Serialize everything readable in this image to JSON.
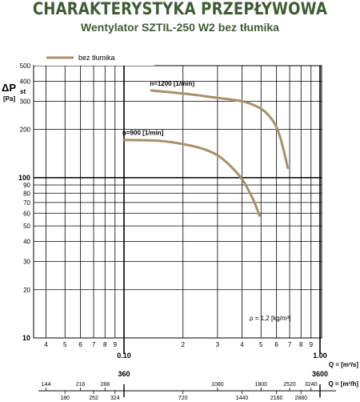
{
  "title": "CHARAKTERYSTYKA PRZEPŁYWOWA",
  "subtitle": "Wentylator SZTIL-250 W2 bez tłumika",
  "chart_data": {
    "type": "line",
    "title": "CHARAKTERYSTYKA PRZEPŁYWOWA",
    "subtitle": "Wentylator SZTIL-250 W2 bez tłumika",
    "legend": {
      "label": "bez tłumika",
      "placement": "top-left",
      "color": "#a8906a"
    },
    "ylabel_main": "ΔP",
    "ylabel_sub": "st",
    "yunit": "[Pa]",
    "y_scale": "log",
    "ylim": [
      10,
      500
    ],
    "y_ticks": [
      10,
      20,
      30,
      40,
      50,
      60,
      70,
      80,
      90,
      100,
      200,
      300,
      400,
      500
    ],
    "y_tick_labels": [
      "10",
      "20",
      "30",
      "40",
      "50",
      "60",
      "70",
      "80",
      "90",
      "100",
      "200",
      "300",
      "400",
      "500"
    ],
    "x_scale": "log",
    "x_ticks_minor": [
      {
        "v": 0.04,
        "label": "4"
      },
      {
        "v": 0.05,
        "label": "5"
      },
      {
        "v": 0.06,
        "label": "6"
      },
      {
        "v": 0.07,
        "label": "7"
      },
      {
        "v": 0.08,
        "label": "8"
      },
      {
        "v": 0.09,
        "label": "9"
      },
      {
        "v": 0.2,
        "label": "2"
      },
      {
        "v": 0.3,
        "label": "3"
      },
      {
        "v": 0.4,
        "label": "4"
      },
      {
        "v": 0.5,
        "label": "5"
      },
      {
        "v": 0.6,
        "label": "6"
      },
      {
        "v": 0.7,
        "label": "7"
      },
      {
        "v": 0.8,
        "label": "8"
      },
      {
        "v": 0.9,
        "label": "9"
      }
    ],
    "x_ticks_major": [
      {
        "v": 0.1,
        "label": "0.10"
      },
      {
        "v": 1.0,
        "label": "1.00"
      }
    ],
    "xlabel_ms": "Q = [m³/s]",
    "xlabel_mh": "Q = [m³/h]",
    "mh_major": [
      {
        "v": 360,
        "label": "360"
      },
      {
        "v": 3600,
        "label": "3600"
      }
    ],
    "mh_top": [
      {
        "v": 144,
        "label": "144"
      },
      {
        "v": 216,
        "label": "216"
      },
      {
        "v": 288,
        "label": "288"
      },
      {
        "v": 1080,
        "label": "1080"
      },
      {
        "v": 1800,
        "label": "1800"
      },
      {
        "v": 2520,
        "label": "2520"
      },
      {
        "v": 3240,
        "label": "3240"
      }
    ],
    "mh_bottom": [
      {
        "v": 180,
        "label": "180"
      },
      {
        "v": 252,
        "label": "252"
      },
      {
        "v": 324,
        "label": "324"
      },
      {
        "v": 720,
        "label": "720"
      },
      {
        "v": 1440,
        "label": "1440"
      },
      {
        "v": 2160,
        "label": "2160"
      },
      {
        "v": 2880,
        "label": "2880"
      }
    ],
    "annotation": "ρ = 1,2 [kg/m³]",
    "series": [
      {
        "name": "n=1200 [1/min]",
        "color": "#a8906a",
        "points": [
          [
            0.138,
            350
          ],
          [
            0.2,
            335
          ],
          [
            0.3,
            315
          ],
          [
            0.4,
            300
          ],
          [
            0.47,
            280
          ],
          [
            0.53,
            255
          ],
          [
            0.59,
            215
          ],
          [
            0.63,
            175
          ],
          [
            0.66,
            140
          ],
          [
            0.685,
            115
          ]
        ]
      },
      {
        "name": "n=900 [1/min]",
        "color": "#a8906a",
        "points": [
          [
            0.1,
            172
          ],
          [
            0.15,
            170
          ],
          [
            0.2,
            162
          ],
          [
            0.25,
            152
          ],
          [
            0.3,
            138
          ],
          [
            0.35,
            118
          ],
          [
            0.4,
            98
          ],
          [
            0.44,
            80
          ],
          [
            0.47,
            67
          ],
          [
            0.49,
            58
          ]
        ]
      }
    ]
  }
}
